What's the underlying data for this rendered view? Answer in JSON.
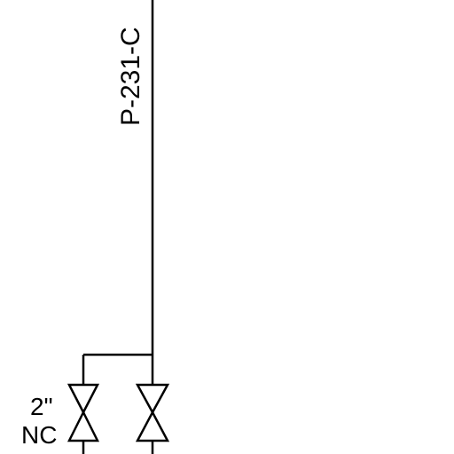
{
  "diagram": {
    "line_tag": "P-231-C",
    "valve_left": {
      "size": "2\"",
      "state": "NC"
    }
  },
  "colors": {
    "line": "#000000",
    "background": "#ffffff"
  }
}
